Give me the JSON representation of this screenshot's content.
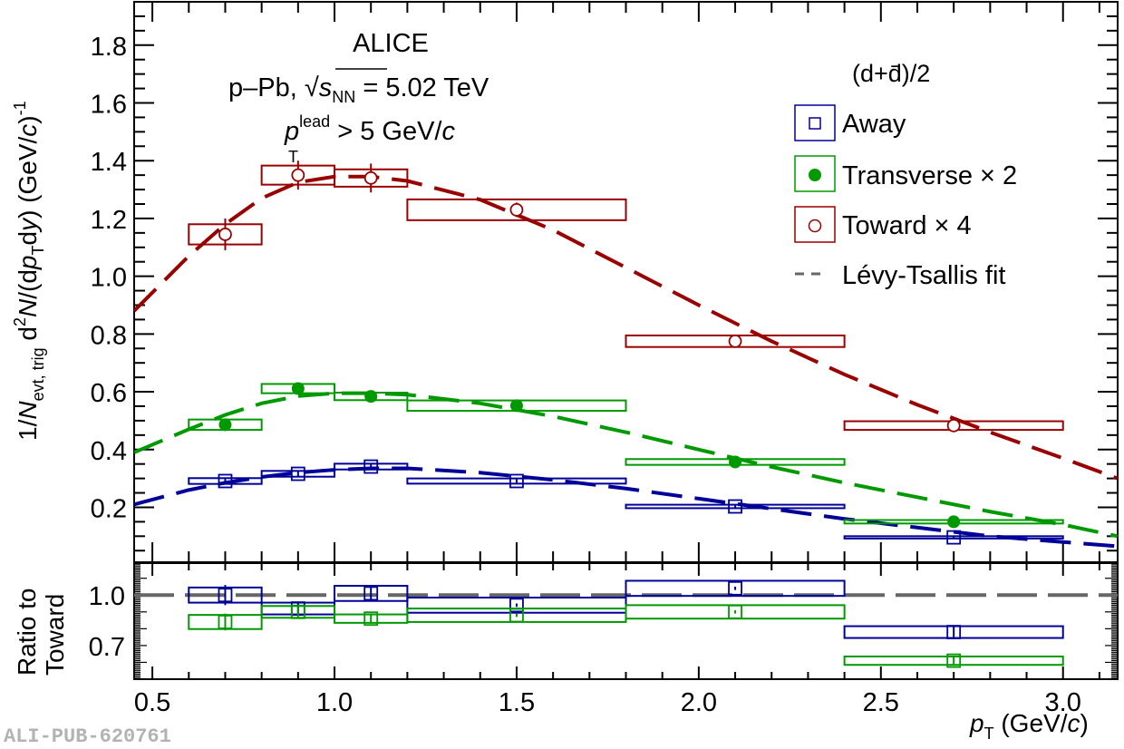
{
  "chart_data": {
    "type": "scatter",
    "title": "",
    "annotations": {
      "experiment": "ALICE",
      "system_prefix": "p–Pb, ",
      "sqrt_s_symbol": "s",
      "sqrt_s_sub": "NN",
      "sqrt_s_value": " = 5.02 TeV",
      "trigger_p": "p",
      "trigger_sup": "lead",
      "trigger_sub": "T",
      "trigger_value": " > 5 GeV/",
      "trigger_unit_c": "c"
    },
    "watermark": "ALI-PUB-620761",
    "xlabel": {
      "p": "p",
      "sub": "T",
      "unit": " (GeV/",
      "c": "c",
      "close": ")"
    },
    "ylabel": {
      "part1": "1/",
      "N": "N",
      "N_sub": "evt, trig",
      "part2": " d",
      "sup2": "2",
      "N2": "N",
      "part3": "/(d",
      "p": "p",
      "p_sub": "T",
      "part4": "d",
      "y": "y",
      "part5": ") (GeV/",
      "c": "c",
      "part6": ")",
      "exp": "-1"
    },
    "ratio_ylabel": [
      "Ratio to",
      "Toward"
    ],
    "xlim": [
      0.45,
      3.15
    ],
    "ylim": [
      0.01,
      1.95
    ],
    "ratio_ylim": [
      0.5,
      1.19
    ],
    "x_ticks": [
      0.5,
      1.0,
      1.5,
      2.0,
      2.5,
      3.0
    ],
    "x_tick_labels": [
      "0.5",
      "1.0",
      "1.5",
      "2.0",
      "2.5",
      "3.0"
    ],
    "y_ticks": [
      0.2,
      0.4,
      0.6,
      0.8,
      1.0,
      1.2,
      1.4,
      1.6,
      1.8
    ],
    "y_tick_labels": [
      "0.2",
      "0.4",
      "0.6",
      "0.8",
      "1.0",
      "1.2",
      "1.4",
      "1.6",
      "1.8"
    ],
    "ratio_y_ticks": [
      1.0,
      0.7
    ],
    "ratio_y_tick_labels": [
      "1.0",
      "0.7"
    ],
    "legend": {
      "header": "(d+d̄)/2",
      "placement": "top-right",
      "entries": [
        {
          "label": "Away",
          "series": "away",
          "marker": "open-square"
        },
        {
          "label": "Transverse × 2",
          "series": "transverse",
          "marker": "filled-circle"
        },
        {
          "label": "Toward × 4",
          "series": "toward",
          "marker": "open-circle"
        },
        {
          "label": "Lévy-Tsallis fit",
          "series": "fit",
          "marker": "dashed-line"
        }
      ]
    },
    "bins": [
      [
        0.6,
        0.8
      ],
      [
        0.8,
        1.0
      ],
      [
        1.0,
        1.2
      ],
      [
        1.2,
        1.8
      ],
      [
        1.8,
        2.4
      ],
      [
        2.4,
        3.0
      ]
    ],
    "x": [
      0.7,
      0.9,
      1.1,
      1.5,
      2.1,
      2.7
    ],
    "series": [
      {
        "name": "Toward × 4",
        "key": "toward",
        "color": "#990000",
        "marker": "open-circle",
        "values": [
          1.145,
          1.35,
          1.34,
          1.23,
          0.775,
          0.483
        ],
        "stat_err": [
          0.055,
          0.05,
          0.05,
          0.025,
          0.02,
          0.015
        ],
        "sys_err": [
          0.035,
          0.033,
          0.03,
          0.036,
          0.02,
          0.015
        ],
        "fit": {
          "x": [
            0.45,
            0.6,
            0.7,
            0.8,
            0.9,
            1.0,
            1.1,
            1.2,
            1.4,
            1.6,
            1.8,
            2.0,
            2.2,
            2.4,
            2.6,
            2.8,
            3.0,
            3.15
          ],
          "y": [
            0.88,
            1.07,
            1.18,
            1.27,
            1.325,
            1.345,
            1.345,
            1.33,
            1.265,
            1.16,
            1.03,
            0.9,
            0.775,
            0.66,
            0.555,
            0.46,
            0.37,
            0.3
          ]
        }
      },
      {
        "name": "Transverse × 2",
        "key": "transverse",
        "color": "#009900",
        "marker": "filled-circle",
        "values": [
          0.486,
          0.611,
          0.584,
          0.552,
          0.357,
          0.15
        ],
        "stat_err": [
          0.02,
          0.015,
          0.012,
          0.01,
          0.008,
          0.006
        ],
        "sys_err": [
          0.018,
          0.016,
          0.013,
          0.018,
          0.01,
          0.006
        ],
        "fit": {
          "x": [
            0.45,
            0.6,
            0.7,
            0.8,
            0.9,
            1.0,
            1.1,
            1.2,
            1.4,
            1.6,
            1.8,
            2.0,
            2.2,
            2.4,
            2.6,
            2.8,
            3.0,
            3.15
          ],
          "y": [
            0.39,
            0.47,
            0.52,
            0.56,
            0.585,
            0.595,
            0.595,
            0.59,
            0.56,
            0.515,
            0.46,
            0.4,
            0.34,
            0.285,
            0.235,
            0.185,
            0.14,
            0.1
          ]
        }
      },
      {
        "name": "Away",
        "key": "away",
        "color": "#000099",
        "marker": "open-square",
        "values": [
          0.291,
          0.316,
          0.341,
          0.291,
          0.203,
          0.096
        ],
        "stat_err": [
          0.01,
          0.01,
          0.01,
          0.006,
          0.005,
          0.004
        ],
        "sys_err": [
          0.01,
          0.01,
          0.01,
          0.009,
          0.006,
          0.004
        ],
        "fit": {
          "x": [
            0.45,
            0.6,
            0.7,
            0.8,
            0.9,
            1.0,
            1.1,
            1.2,
            1.4,
            1.6,
            1.8,
            2.0,
            2.2,
            2.4,
            2.6,
            2.8,
            3.0,
            3.15
          ],
          "y": [
            0.21,
            0.26,
            0.285,
            0.305,
            0.32,
            0.33,
            0.335,
            0.335,
            0.32,
            0.295,
            0.265,
            0.23,
            0.195,
            0.16,
            0.13,
            0.1,
            0.08,
            0.065
          ]
        }
      }
    ],
    "ratio_series": [
      {
        "name": "Away / Toward",
        "key": "away",
        "color": "#000099",
        "values": [
          1.0,
          0.92,
          1.01,
          0.94,
          1.04,
          0.78
        ],
        "stat_err": [
          0.06,
          0.03,
          0.035,
          0.01,
          0.01,
          0.03
        ],
        "sys_err": [
          0.045,
          0.035,
          0.045,
          0.045,
          0.045,
          0.035
        ]
      },
      {
        "name": "Transverse / Toward",
        "key": "transverse",
        "color": "#009900",
        "values": [
          0.84,
          0.9,
          0.86,
          0.88,
          0.9,
          0.61
        ],
        "stat_err": [
          0.05,
          0.03,
          0.03,
          0.01,
          0.01,
          0.02
        ],
        "sys_err": [
          0.042,
          0.035,
          0.025,
          0.04,
          0.04,
          0.025
        ]
      }
    ],
    "ratio_reference": 1.0,
    "fit_line_color": "#666666"
  }
}
